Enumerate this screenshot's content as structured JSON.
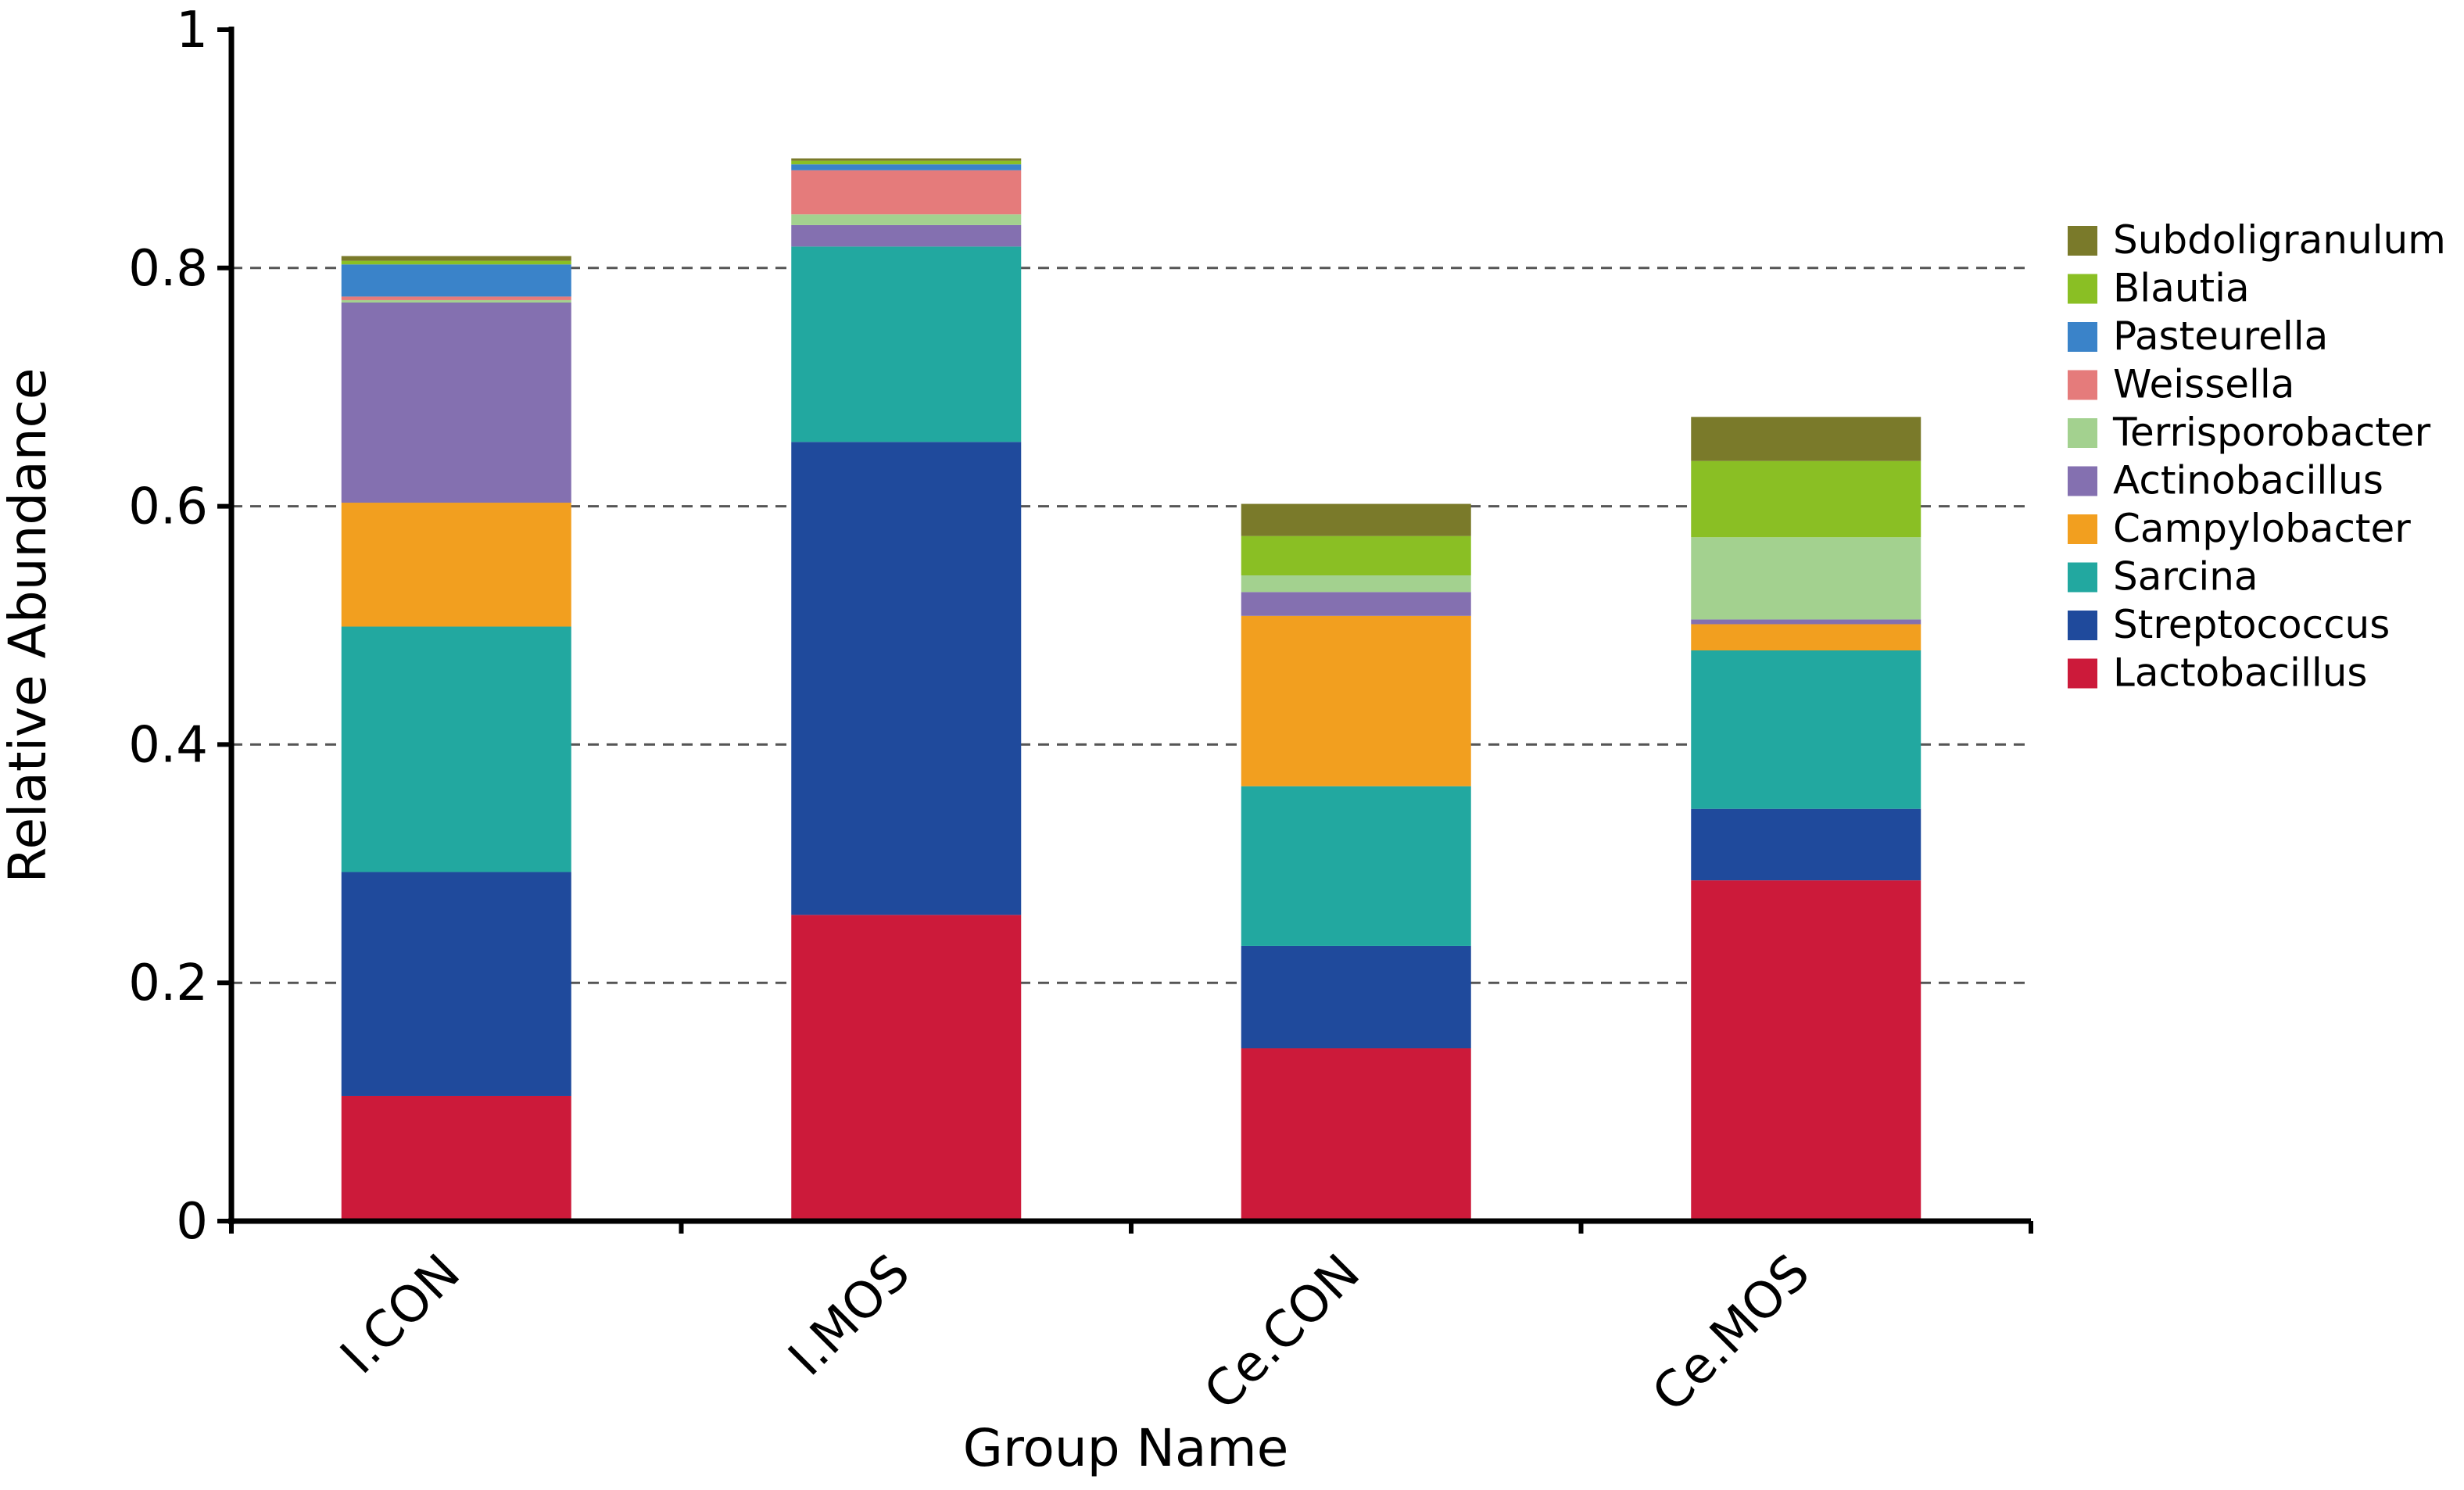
{
  "chart_data": {
    "type": "bar",
    "stacked": true,
    "xlabel": "Group Name",
    "ylabel": "Relative Abundance",
    "ylim": [
      0,
      1
    ],
    "yticks": [
      {
        "value": 0,
        "label": "0"
      },
      {
        "value": 0.2,
        "label": "0.2"
      },
      {
        "value": 0.4,
        "label": "0.4"
      },
      {
        "value": 0.6,
        "label": "0.6"
      },
      {
        "value": 0.8,
        "label": "0.8"
      },
      {
        "value": 1,
        "label": "1"
      }
    ],
    "grid": "horizontal dashed",
    "legend_position": "right",
    "categories": [
      "I.CON",
      "I.MOS",
      "Ce.CON",
      "Ce.MOS"
    ],
    "series": [
      {
        "name": "Lactobacillus",
        "color": "#cc1a3a",
        "values": [
          0.105,
          0.257,
          0.145,
          0.286
        ]
      },
      {
        "name": "Streptococcus",
        "color": "#1f4a9c",
        "values": [
          0.188,
          0.397,
          0.086,
          0.06
        ]
      },
      {
        "name": "Sarcina",
        "color": "#22a8a0",
        "values": [
          0.206,
          0.164,
          0.134,
          0.133
        ]
      },
      {
        "name": "Campylobacter",
        "color": "#f29f1f",
        "values": [
          0.104,
          0.0,
          0.143,
          0.022
        ]
      },
      {
        "name": "Actinobacillus",
        "color": "#8470b0",
        "values": [
          0.168,
          0.018,
          0.02,
          0.004
        ]
      },
      {
        "name": "Terrisporobacter",
        "color": "#a3d18f",
        "values": [
          0.002,
          0.009,
          0.014,
          0.069
        ]
      },
      {
        "name": "Weissella",
        "color": "#e57b7b",
        "values": [
          0.003,
          0.037,
          0.0,
          0.0
        ]
      },
      {
        "name": "Pasteurella",
        "color": "#3a83c9",
        "values": [
          0.027,
          0.005,
          0.0,
          0.0
        ]
      },
      {
        "name": "Blautia",
        "color": "#8abf24",
        "values": [
          0.003,
          0.003,
          0.033,
          0.064
        ]
      },
      {
        "name": "Subdoligranulum",
        "color": "#7a7a2a",
        "values": [
          0.004,
          0.002,
          0.027,
          0.037
        ]
      }
    ]
  }
}
